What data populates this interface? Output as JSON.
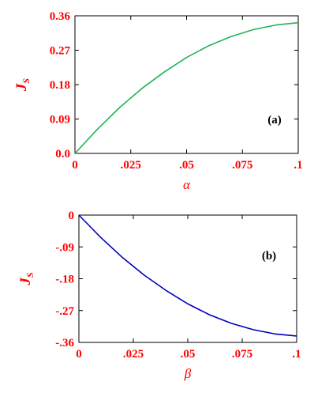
{
  "chart_data": [
    {
      "type": "line",
      "annotation": "(a)",
      "xlabel": "α",
      "ylabel": "J",
      "ylabel_sub": "S",
      "xlim": [
        0,
        0.1
      ],
      "ylim": [
        0,
        0.36
      ],
      "x_ticks": [
        "0",
        ".025",
        ".05",
        ".075",
        ".1"
      ],
      "x_tick_values": [
        0,
        0.025,
        0.05,
        0.075,
        0.1
      ],
      "y_ticks": [
        "0.0",
        "0.09",
        "0.18",
        "0.27",
        "0.36"
      ],
      "y_tick_values": [
        0,
        0.09,
        0.18,
        0.27,
        0.36
      ],
      "label_color": "#ff0000",
      "grid": false,
      "series": [
        {
          "color": "#22b257",
          "x": [
            0,
            0.01,
            0.02,
            0.03,
            0.04,
            0.05,
            0.06,
            0.07,
            0.08,
            0.09,
            0.1
          ],
          "values": [
            0,
            0.063,
            0.12,
            0.17,
            0.213,
            0.251,
            0.282,
            0.306,
            0.324,
            0.336,
            0.342
          ]
        }
      ]
    },
    {
      "type": "line",
      "annotation": "(b)",
      "xlabel": "β",
      "ylabel": "J",
      "ylabel_sub": "S",
      "xlim": [
        0,
        0.1
      ],
      "ylim": [
        -0.36,
        0
      ],
      "x_ticks": [
        "0",
        ".025",
        ".05",
        ".075",
        ".1"
      ],
      "x_tick_values": [
        0,
        0.025,
        0.05,
        0.075,
        0.1
      ],
      "y_ticks": [
        "0",
        "-.09",
        "-.18",
        "-.27",
        "-.36"
      ],
      "y_tick_values": [
        0,
        -0.09,
        -0.18,
        -0.27,
        -0.36
      ],
      "label_color": "#ff0000",
      "grid": false,
      "series": [
        {
          "color": "#0000bb",
          "x": [
            0,
            0.01,
            0.02,
            0.03,
            0.04,
            0.05,
            0.06,
            0.07,
            0.08,
            0.09,
            0.1
          ],
          "values": [
            0,
            -0.063,
            -0.12,
            -0.17,
            -0.213,
            -0.251,
            -0.282,
            -0.306,
            -0.324,
            -0.336,
            -0.342
          ]
        }
      ]
    }
  ]
}
